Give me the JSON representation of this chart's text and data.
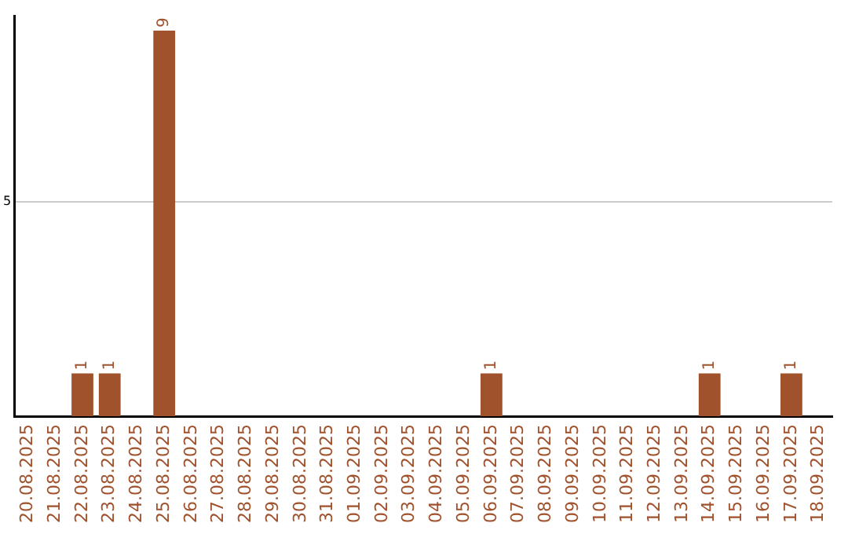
{
  "chart_data": {
    "type": "bar",
    "categories": [
      "20.08.2025",
      "21.08.2025",
      "22.08.2025",
      "23.08.2025",
      "24.08.2025",
      "25.08.2025",
      "26.08.2025",
      "27.08.2025",
      "28.08.2025",
      "29.08.2025",
      "30.08.2025",
      "31.08.2025",
      "01.09.2025",
      "02.09.2025",
      "03.09.2025",
      "04.09.2025",
      "05.09.2025",
      "06.09.2025",
      "07.09.2025",
      "08.09.2025",
      "09.09.2025",
      "10.09.2025",
      "11.09.2025",
      "12.09.2025",
      "13.09.2025",
      "14.09.2025",
      "15.09.2025",
      "16.09.2025",
      "17.09.2025",
      "18.09.2025"
    ],
    "values": [
      0,
      0,
      1,
      1,
      0,
      9,
      0,
      0,
      0,
      0,
      0,
      0,
      0,
      0,
      0,
      0,
      0,
      1,
      0,
      0,
      0,
      0,
      0,
      0,
      0,
      1,
      0,
      0,
      1,
      0
    ],
    "value_labels": [
      null,
      null,
      "1",
      "1",
      null,
      "9",
      null,
      null,
      null,
      null,
      null,
      null,
      null,
      null,
      null,
      null,
      null,
      "1",
      null,
      null,
      null,
      null,
      null,
      null,
      null,
      "1",
      null,
      null,
      "1",
      null
    ],
    "color": "#a0522d",
    "ylim": [
      0,
      9.35
    ],
    "yticks": [
      5
    ],
    "grid": "y",
    "legend": false
  }
}
